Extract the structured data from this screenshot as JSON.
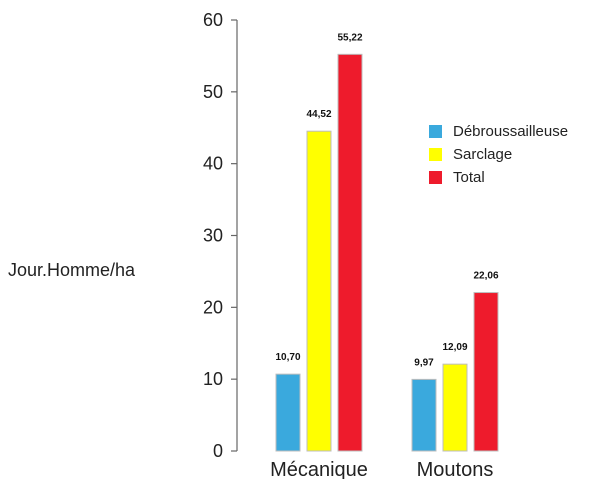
{
  "chart_data": {
    "type": "bar",
    "categories": [
      "Mécanique",
      "Moutons"
    ],
    "series": [
      {
        "name": "Débroussailleuse",
        "color": "#3aa9dd",
        "values": [
          10.7,
          9.97
        ],
        "labels": [
          "10,70",
          "9,97"
        ]
      },
      {
        "name": "Sarclage",
        "color": "#ffff00",
        "values": [
          44.52,
          12.09
        ],
        "labels": [
          "44,52",
          "12,09"
        ]
      },
      {
        "name": "Total",
        "color": "#ee1b2c",
        "values": [
          55.22,
          22.06
        ],
        "labels": [
          "55,22",
          "22,06"
        ]
      }
    ],
    "ylabel": "Jour.Homme/ha",
    "xlabel": "",
    "ylim": [
      0,
      60
    ],
    "yticks": [
      "0",
      "10",
      "20",
      "30",
      "40",
      "50",
      "60"
    ],
    "legend_position": "right",
    "grid": false
  }
}
